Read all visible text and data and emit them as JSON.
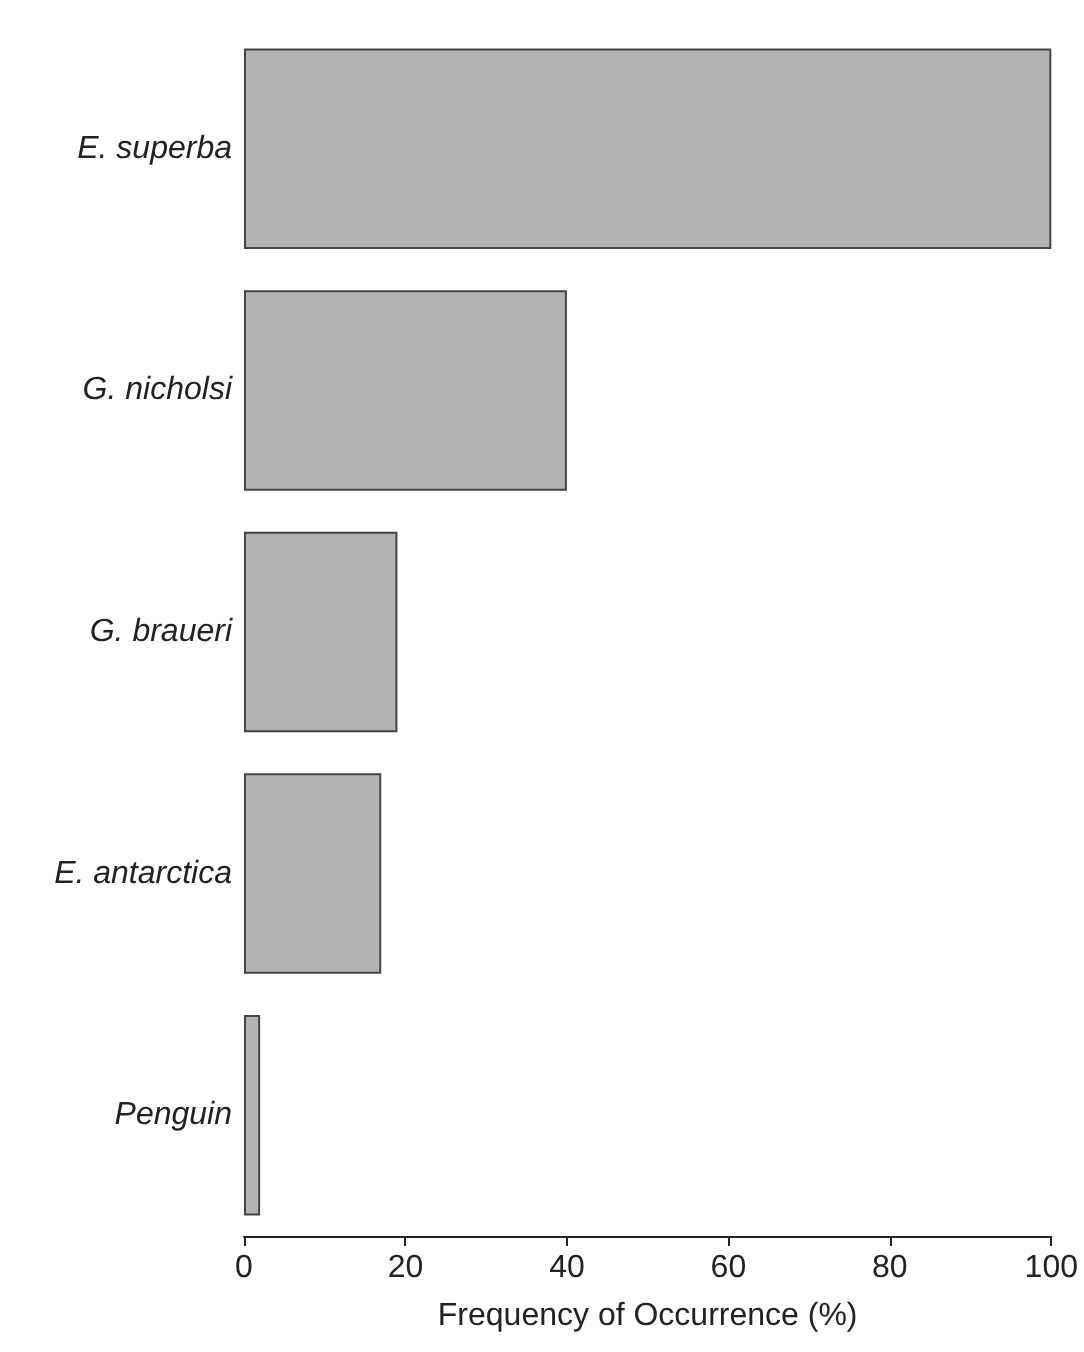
{
  "chart_data": {
    "type": "bar",
    "orientation": "horizontal",
    "xlabel": "Frequency of Occurrence (%)",
    "categories": [
      "E. superba",
      "G. nicholsi",
      "G. braueri",
      "E. antarctica",
      "Penguin"
    ],
    "values": [
      100,
      40,
      19,
      17,
      2
    ],
    "color": "#b3b3b3",
    "xlim": [
      0,
      100
    ],
    "xticks": [
      0,
      20,
      40,
      60,
      80,
      100
    ],
    "grid": false
  }
}
